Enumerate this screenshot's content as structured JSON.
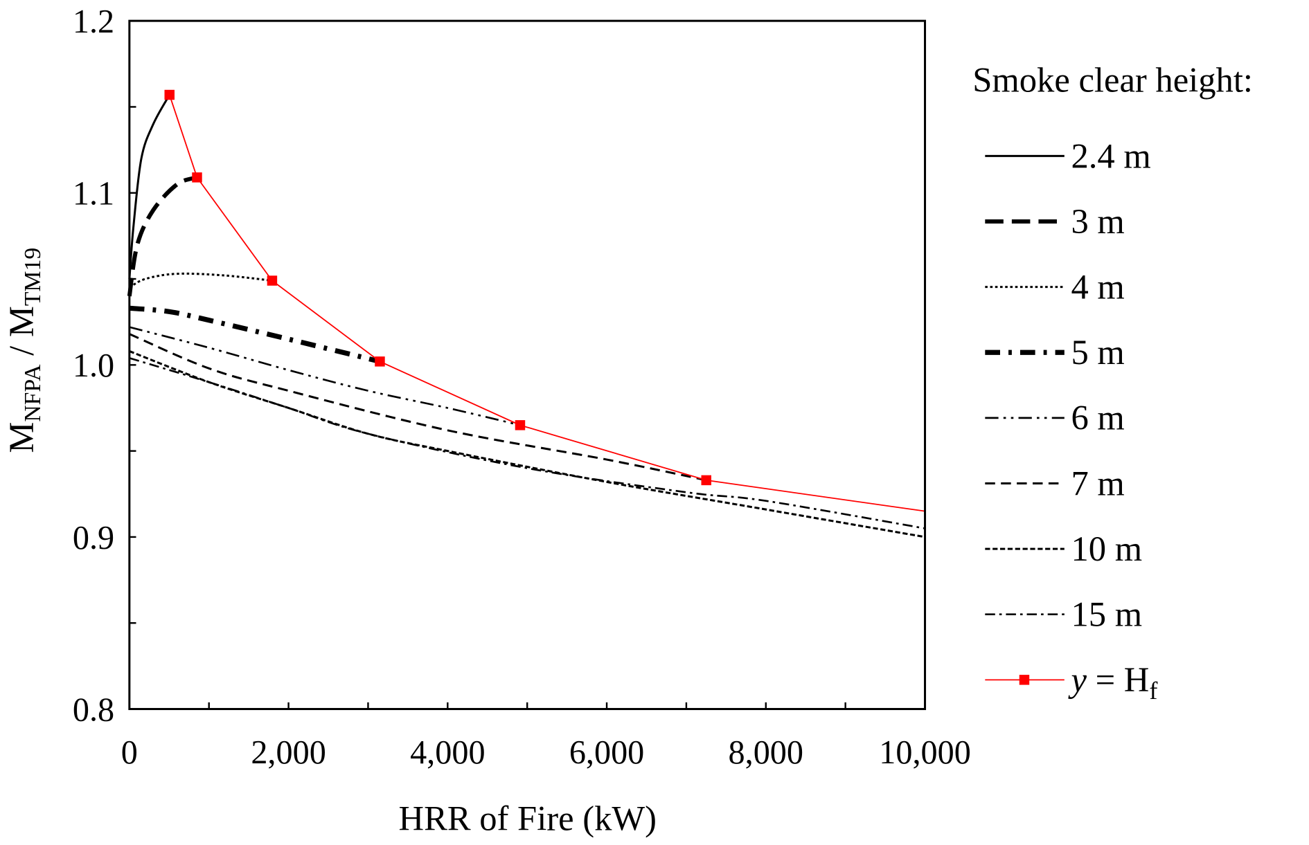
{
  "chart_data": {
    "type": "line",
    "xlabel": "HRR of Fire (kW)",
    "ylabel": {
      "main1": "M",
      "sub1": "NFPA",
      "sep": " / ",
      "main2": "M",
      "sub2": "TM19"
    },
    "xlim": [
      0,
      10000
    ],
    "ylim": [
      0.8,
      1.2
    ],
    "xticks": [
      "0",
      "2,000",
      "4,000",
      "6,000",
      "8,000",
      "10,000"
    ],
    "xtick_values": [
      0,
      2000,
      4000,
      6000,
      8000,
      10000
    ],
    "yticks": [
      "0.8",
      "0.9",
      "1.0",
      "1.1",
      "1.2"
    ],
    "ytick_values": [
      0.8,
      0.9,
      1.0,
      1.1,
      1.2
    ],
    "grid": false,
    "legend_title": "Smoke clear height:",
    "legend_placement": "right",
    "series": [
      {
        "name": "2.4 m",
        "style": "solid",
        "color": "#000000",
        "x": [
          0,
          50,
          150,
          300,
          504
        ],
        "y": [
          1.05,
          1.08,
          1.12,
          1.14,
          1.157
        ]
      },
      {
        "name": "3 m",
        "style": "long-dash",
        "color": "#000000",
        "x": [
          0,
          100,
          300,
          600,
          850
        ],
        "y": [
          1.04,
          1.07,
          1.09,
          1.105,
          1.109
        ]
      },
      {
        "name": "4 m",
        "style": "dotted",
        "color": "#000000",
        "x": [
          0,
          200,
          600,
          1200,
          1794
        ],
        "y": [
          1.045,
          1.05,
          1.053,
          1.052,
          1.049
        ]
      },
      {
        "name": "5 m",
        "style": "dash-dot-thick",
        "color": "#000000",
        "x": [
          0,
          500,
          1000,
          2000,
          3148
        ],
        "y": [
          1.033,
          1.031,
          1.026,
          1.015,
          1.002
        ]
      },
      {
        "name": "6 m",
        "style": "dash-dot-dot",
        "color": "#000000",
        "x": [
          0,
          1000,
          2000,
          3000,
          4000,
          4911
        ],
        "y": [
          1.022,
          1.01,
          0.997,
          0.985,
          0.975,
          0.965
        ]
      },
      {
        "name": "7 m",
        "style": "dash",
        "color": "#000000",
        "x": [
          0,
          1000,
          2000,
          4000,
          6000,
          7251
        ],
        "y": [
          1.018,
          0.998,
          0.985,
          0.962,
          0.945,
          0.933
        ]
      },
      {
        "name": "10 m",
        "style": "short-dash",
        "color": "#000000",
        "x": [
          0,
          1000,
          2000,
          3000,
          4000,
          6000,
          8000,
          10000
        ],
        "y": [
          1.008,
          0.99,
          0.975,
          0.96,
          0.95,
          0.932,
          0.916,
          0.9
        ]
      },
      {
        "name": "15 m",
        "style": "dash-dot",
        "color": "#000000",
        "x": [
          0,
          1000,
          2000,
          3000,
          5000,
          7000,
          8000,
          10000
        ],
        "y": [
          1.004,
          0.99,
          0.975,
          0.96,
          0.94,
          0.926,
          0.921,
          0.905
        ]
      },
      {
        "name": "y = H",
        "name_sub": "f",
        "style": "solid-marker",
        "color": "#ff0000",
        "x": [
          504,
          850,
          1794,
          3148,
          4911,
          7251,
          10000
        ],
        "y": [
          1.157,
          1.109,
          1.049,
          1.002,
          0.965,
          0.933,
          0.915
        ],
        "markers": [
          true,
          true,
          true,
          true,
          true,
          true,
          false
        ]
      }
    ]
  }
}
